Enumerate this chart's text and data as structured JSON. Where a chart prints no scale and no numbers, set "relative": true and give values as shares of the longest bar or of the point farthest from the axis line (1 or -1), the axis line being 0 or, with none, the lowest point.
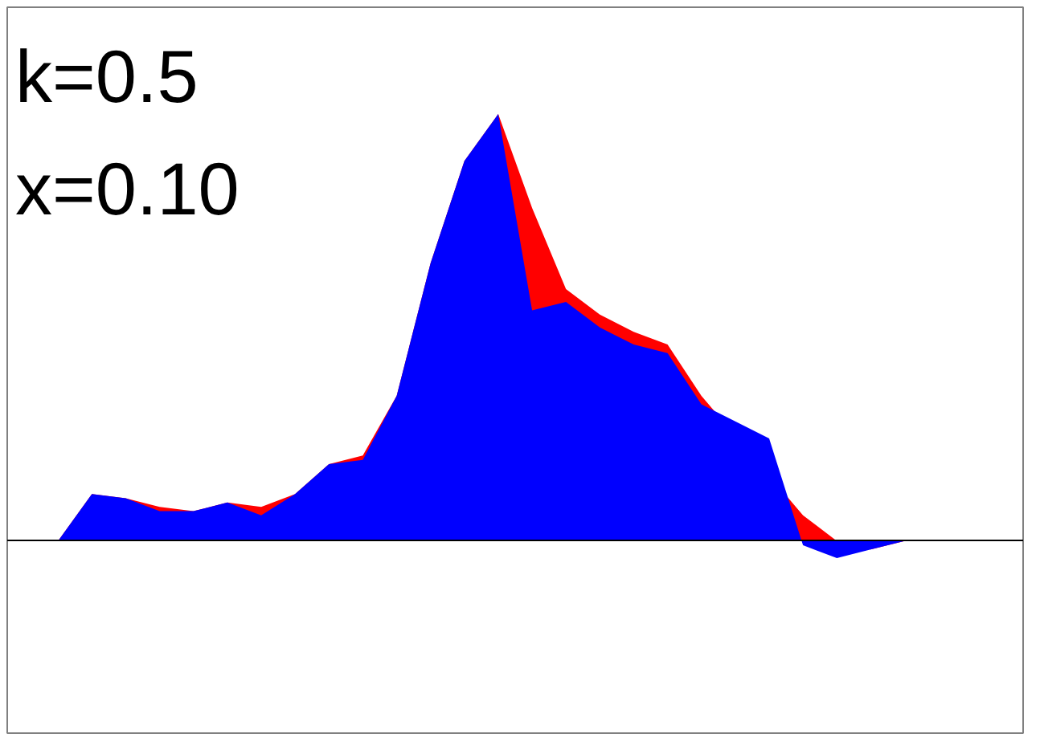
{
  "chart_data": {
    "type": "area",
    "relative": true,
    "annotations": [
      "k=0.5",
      "x=0.10"
    ],
    "categories": [
      null,
      null,
      null,
      null,
      null,
      null,
      null,
      null,
      null,
      null,
      null,
      null,
      null,
      null,
      null,
      null,
      null,
      null,
      null,
      null,
      null,
      null,
      null,
      null,
      null,
      null
    ],
    "series": [
      {
        "color": "#ff0000",
        "values": [
          0,
          0.11,
          0.1,
          0.08,
          0.07,
          0.09,
          0.08,
          0.11,
          0.18,
          0.2,
          0.34,
          0.65,
          0.89,
          1,
          0.78,
          0.59,
          0.53,
          0.49,
          0.46,
          0.34,
          null,
          null,
          0.06,
          0,
          -0.02,
          0
        ]
      },
      {
        "color": "#0000ff",
        "values": [
          0,
          0.11,
          0.1,
          0.07,
          0.07,
          0.09,
          0.06,
          0.11,
          0.18,
          0.19,
          0.34,
          0.65,
          0.89,
          1,
          0.54,
          0.56,
          0.5,
          0.46,
          0.44,
          0.32,
          0.28,
          0.24,
          -0.01,
          -0.04,
          -0.02,
          0
        ]
      }
    ],
    "grid": false
  }
}
